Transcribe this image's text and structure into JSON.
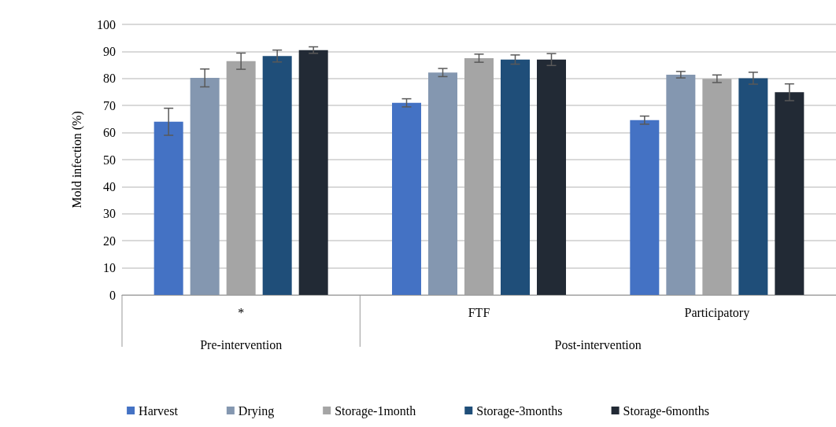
{
  "chart_data": {
    "type": "bar",
    "ylabel": "Mold infection (%)",
    "categories": [
      "*",
      "FTF",
      "Participatory"
    ],
    "annotations": [
      "Pre-intervention",
      "Post-intervention"
    ],
    "ylim": [
      0,
      100
    ],
    "yticks": [
      0,
      10,
      20,
      30,
      40,
      50,
      60,
      70,
      80,
      90,
      100
    ],
    "grid": "y",
    "legend": "bottom",
    "series": [
      {
        "name": "Harvest",
        "color": "#4472c4",
        "values": [
          64,
          71,
          64.6
        ],
        "errors": [
          5,
          1.5,
          1.5
        ]
      },
      {
        "name": "Drying",
        "color": "#8497b0",
        "values": [
          80.2,
          82.2,
          81.4
        ],
        "errors": [
          3.3,
          1.5,
          1.2
        ]
      },
      {
        "name": "Storage-1month",
        "color": "#a5a5a5",
        "values": [
          86.4,
          87.5,
          79.9
        ],
        "errors": [
          3,
          1.5,
          1.4
        ]
      },
      {
        "name": "Storage-3months",
        "color": "#1f4e79",
        "values": [
          88.3,
          87,
          80.1
        ],
        "errors": [
          2.2,
          1.7,
          2.2
        ]
      },
      {
        "name": "Storage-6months",
        "color": "#222a35",
        "values": [
          90.5,
          87,
          74.9
        ],
        "errors": [
          1.2,
          2.2,
          3.1
        ]
      }
    ]
  }
}
